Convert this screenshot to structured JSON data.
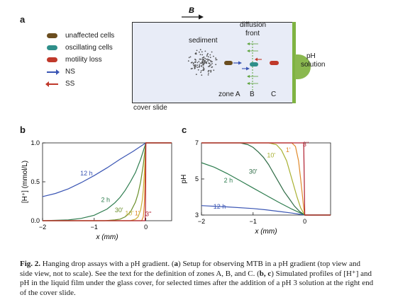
{
  "panel_a": {
    "label": "a",
    "field_label": "B",
    "legend": [
      {
        "label": "unaffected cells",
        "color": "#6b4e1f",
        "symbol": "pill"
      },
      {
        "label": "oscillating cells",
        "color": "#2f8f8a",
        "symbol": "pill"
      },
      {
        "label": "motility loss",
        "color": "#c0392b",
        "symbol": "pill"
      },
      {
        "label": "NS",
        "color": "#3a55b4",
        "symbol": "arrow-right"
      },
      {
        "label": "SS",
        "color": "#c0392b",
        "symbol": "arrow-left"
      }
    ],
    "sediment_label": "sediment",
    "diffusion_front_label": [
      "diffusion",
      "front"
    ],
    "zone_labels": [
      "zone A",
      "B",
      "C"
    ],
    "ph_solution_label": [
      "pH",
      "solution"
    ],
    "cover_slide_label": "cover slide"
  },
  "chart_data": [
    {
      "label": "b",
      "type": "line",
      "xlabel": "x (mm)",
      "ylabel": "[H⁺] (mmol/L)",
      "xlim": [
        -2,
        0.5
      ],
      "ylim": [
        0,
        1.0
      ],
      "xticks": [
        -2,
        -1,
        0
      ],
      "yticks": [
        0.0,
        0.5,
        1.0
      ],
      "ytick_labels": [
        "0.0",
        "0.5",
        "1.0"
      ],
      "series": [
        {
          "name": "12 h",
          "color": "#3a55b4",
          "x": [
            -2,
            -1.75,
            -1.5,
            -1.25,
            -1,
            -0.75,
            -0.5,
            -0.25,
            0,
            0.5
          ],
          "y": [
            0.31,
            0.35,
            0.41,
            0.49,
            0.58,
            0.68,
            0.79,
            0.89,
            1.0,
            1.0
          ]
        },
        {
          "name": "2 h",
          "color": "#2e7d4f",
          "x": [
            -2,
            -1.5,
            -1.25,
            -1,
            -0.75,
            -0.6,
            -0.5,
            -0.4,
            -0.3,
            -0.2,
            -0.1,
            0,
            0.5
          ],
          "y": [
            0.0,
            0.01,
            0.03,
            0.07,
            0.15,
            0.23,
            0.3,
            0.39,
            0.5,
            0.62,
            0.79,
            1.0,
            1.0
          ]
        },
        {
          "name": "30'",
          "color": "#6a8f2a",
          "x": [
            -2,
            -0.8,
            -0.6,
            -0.5,
            -0.4,
            -0.3,
            -0.2,
            -0.15,
            -0.1,
            -0.05,
            0,
            0.5
          ],
          "y": [
            0.0,
            0.0,
            0.01,
            0.02,
            0.05,
            0.11,
            0.24,
            0.35,
            0.5,
            0.72,
            1.0,
            1.0
          ]
        },
        {
          "name": "10'",
          "color": "#c9b23a",
          "x": [
            -2,
            -0.3,
            -0.2,
            -0.15,
            -0.1,
            -0.07,
            -0.05,
            -0.03,
            -0.01,
            0,
            0.5
          ],
          "y": [
            0.0,
            0.0,
            0.02,
            0.05,
            0.14,
            0.26,
            0.4,
            0.6,
            0.85,
            1.0,
            1.0
          ]
        },
        {
          "name": "1'",
          "color": "#e08a2c",
          "x": [
            -2,
            -0.08,
            -0.05,
            -0.03,
            -0.02,
            -0.01,
            0,
            0.5
          ],
          "y": [
            0.0,
            0.0,
            0.05,
            0.2,
            0.4,
            0.7,
            1.0,
            1.0
          ]
        },
        {
          "name": "3''",
          "color": "#b01e2e",
          "x": [
            -2,
            -0.015,
            -0.008,
            -0.003,
            0,
            0.5
          ],
          "y": [
            0.0,
            0.0,
            0.1,
            0.5,
            1.0,
            1.0
          ]
        }
      ]
    },
    {
      "label": "c",
      "type": "line",
      "xlabel": "x (mm)",
      "ylabel": "pH",
      "xlim": [
        -2,
        0.5
      ],
      "ylim": [
        3,
        7
      ],
      "xticks": [
        -2,
        -1,
        0
      ],
      "yticks": [
        3,
        5,
        7
      ],
      "ytick_labels": [
        "3",
        "5",
        "7"
      ],
      "series": [
        {
          "name": "12 h",
          "color": "#3a55b4",
          "x": [
            -2,
            -1.5,
            -1,
            -0.75,
            -0.5,
            -0.25,
            0,
            0.5
          ],
          "y": [
            3.52,
            3.45,
            3.36,
            3.29,
            3.2,
            3.11,
            3.0,
            3.0
          ]
        },
        {
          "name": "2 h",
          "color": "#2e7d4f",
          "x": [
            -2,
            -1.75,
            -1.5,
            -1.25,
            -1,
            -0.75,
            -0.5,
            -0.25,
            0,
            0.5
          ],
          "y": [
            5.9,
            5.65,
            5.3,
            4.9,
            4.5,
            4.1,
            3.7,
            3.33,
            3.0,
            3.0
          ]
        },
        {
          "name": "30'",
          "color": "#2e6b45",
          "x": [
            -2,
            -1.25,
            -1.1,
            -1,
            -0.9,
            -0.8,
            -0.7,
            -0.6,
            -0.5,
            -0.4,
            -0.3,
            -0.2,
            -0.1,
            0,
            0.5
          ],
          "y": [
            7.0,
            7.0,
            6.9,
            6.75,
            6.5,
            6.2,
            5.8,
            5.3,
            4.8,
            4.3,
            3.9,
            3.5,
            3.2,
            3.0,
            3.0
          ]
        },
        {
          "name": "10'",
          "color": "#a8b030",
          "x": [
            -2,
            -0.7,
            -0.55,
            -0.45,
            -0.35,
            -0.25,
            -0.15,
            -0.08,
            0,
            0.5
          ],
          "y": [
            7.0,
            7.0,
            6.9,
            6.6,
            6.0,
            5.0,
            4.0,
            3.4,
            3.0,
            3.0
          ]
        },
        {
          "name": "1'",
          "color": "#e08a2c",
          "x": [
            -2,
            -0.25,
            -0.18,
            -0.12,
            -0.08,
            -0.05,
            -0.02,
            0,
            0.5
          ],
          "y": [
            7.0,
            7.0,
            6.8,
            6.0,
            5.0,
            4.2,
            3.4,
            3.0,
            3.0
          ]
        },
        {
          "name": "3''",
          "color": "#b01e2e",
          "x": [
            -2,
            -0.02,
            -0.01,
            0,
            0.5
          ],
          "y": [
            7.0,
            7.0,
            5.0,
            3.0,
            3.0
          ]
        }
      ]
    }
  ],
  "caption": {
    "fig": "Fig. 2.",
    "t1": "  Hanging drop assays with a pH gradient. (",
    "a": "a",
    "t2": ") Setup for observing MTB in a pH gradient (top view and side view, not to scale). See the text for the definition of zones A, B, and C. (",
    "bc": "b, c",
    "t3": ") Simulated profiles of [H⁺] and pH in the liquid film under the glass cover, for selected times after the addition of a pH 3 solution at the right end of the cover slide."
  }
}
